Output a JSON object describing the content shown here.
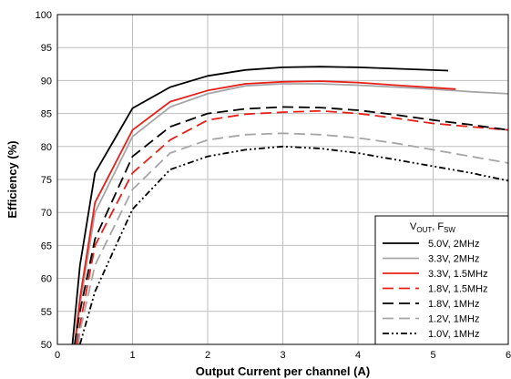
{
  "chart_data": {
    "type": "line",
    "xlabel": "Output Current per channel (A)",
    "ylabel": "Efficiency (%)",
    "xlim": [
      0,
      6
    ],
    "ylim": [
      50,
      100
    ],
    "xticks": [
      0,
      1,
      2,
      3,
      4,
      5,
      6
    ],
    "yticks": [
      50,
      55,
      60,
      65,
      70,
      75,
      80,
      85,
      90,
      95,
      100
    ],
    "grid": true,
    "legend_title": {
      "v": "V",
      "v_sub": "OUT",
      "sep": ", F",
      "f_sub": "SW"
    },
    "legend_position": "bottom-right",
    "series": [
      {
        "name": "5.0V, 2MHz",
        "color": "#000000",
        "dash": "solid",
        "points": [
          [
            0.2,
            50
          ],
          [
            0.3,
            62
          ],
          [
            0.5,
            76
          ],
          [
            1,
            85.8
          ],
          [
            1.5,
            89
          ],
          [
            2,
            90.7
          ],
          [
            2.5,
            91.6
          ],
          [
            3,
            92
          ],
          [
            3.5,
            92.1
          ],
          [
            4,
            92
          ],
          [
            4.5,
            91.8
          ],
          [
            5.2,
            91.5
          ]
        ]
      },
      {
        "name": "3.3V, 2MHz",
        "color": "#a6a6a6",
        "dash": "solid",
        "points": [
          [
            0.24,
            50
          ],
          [
            0.3,
            56
          ],
          [
            0.5,
            70
          ],
          [
            1,
            81.5
          ],
          [
            1.5,
            86
          ],
          [
            2,
            88
          ],
          [
            2.5,
            89.2
          ],
          [
            3,
            89.5
          ],
          [
            3.5,
            89.5
          ],
          [
            4,
            89.3
          ],
          [
            4.5,
            89
          ],
          [
            5,
            88.7
          ],
          [
            5.5,
            88.3
          ],
          [
            6,
            88
          ]
        ]
      },
      {
        "name": "3.3V, 1.5MHz",
        "color": "#e8201a",
        "dash": "solid",
        "points": [
          [
            0.23,
            50
          ],
          [
            0.3,
            57
          ],
          [
            0.5,
            71.5
          ],
          [
            1,
            82.5
          ],
          [
            1.5,
            86.8
          ],
          [
            2,
            88.5
          ],
          [
            2.5,
            89.5
          ],
          [
            3,
            89.8
          ],
          [
            3.5,
            89.9
          ],
          [
            4,
            89.7
          ],
          [
            4.5,
            89.3
          ],
          [
            5.3,
            88.7
          ]
        ]
      },
      {
        "name": "1.8V, 1.5MHz",
        "color": "#e8201a",
        "dash": "long",
        "points": [
          [
            0.26,
            50
          ],
          [
            0.3,
            53
          ],
          [
            0.5,
            65
          ],
          [
            1,
            76
          ],
          [
            1.5,
            81
          ],
          [
            2,
            84
          ],
          [
            2.5,
            84.9
          ],
          [
            3,
            85.2
          ],
          [
            3.5,
            85.4
          ],
          [
            4,
            85
          ],
          [
            4.5,
            84.3
          ],
          [
            5,
            83.5
          ],
          [
            5.5,
            83
          ],
          [
            6,
            82.5
          ]
        ]
      },
      {
        "name": "1.8V, 1MHz",
        "color": "#000000",
        "dash": "long",
        "points": [
          [
            0.23,
            50
          ],
          [
            0.3,
            55
          ],
          [
            0.5,
            66
          ],
          [
            1,
            78.5
          ],
          [
            1.5,
            83
          ],
          [
            2,
            85
          ],
          [
            2.5,
            85.7
          ],
          [
            3,
            86
          ],
          [
            3.5,
            85.9
          ],
          [
            4,
            85.5
          ],
          [
            4.5,
            84.8
          ],
          [
            5,
            84
          ],
          [
            5.5,
            83.3
          ],
          [
            6,
            82.5
          ]
        ]
      },
      {
        "name": "1.2V, 1MHz",
        "color": "#a6a6a6",
        "dash": "long",
        "points": [
          [
            0.28,
            50
          ],
          [
            0.3,
            52
          ],
          [
            0.5,
            62
          ],
          [
            1,
            73.5
          ],
          [
            1.5,
            79
          ],
          [
            2,
            81
          ],
          [
            2.5,
            81.8
          ],
          [
            3,
            82
          ],
          [
            3.5,
            81.8
          ],
          [
            4,
            81.3
          ],
          [
            4.5,
            80.5
          ],
          [
            5,
            79.5
          ],
          [
            5.5,
            78.5
          ],
          [
            6,
            77.5
          ]
        ]
      },
      {
        "name": "1.0V, 1MHz",
        "color": "#000000",
        "dash": "dashdotdot",
        "points": [
          [
            0.3,
            50
          ],
          [
            0.35,
            52
          ],
          [
            0.5,
            58
          ],
          [
            1,
            70.5
          ],
          [
            1.5,
            76.5
          ],
          [
            2,
            78.5
          ],
          [
            2.5,
            79.5
          ],
          [
            3,
            80
          ],
          [
            3.5,
            79.7
          ],
          [
            4,
            79
          ],
          [
            4.5,
            78
          ],
          [
            5,
            77
          ],
          [
            5.5,
            76
          ],
          [
            6,
            74.8
          ]
        ]
      }
    ]
  }
}
